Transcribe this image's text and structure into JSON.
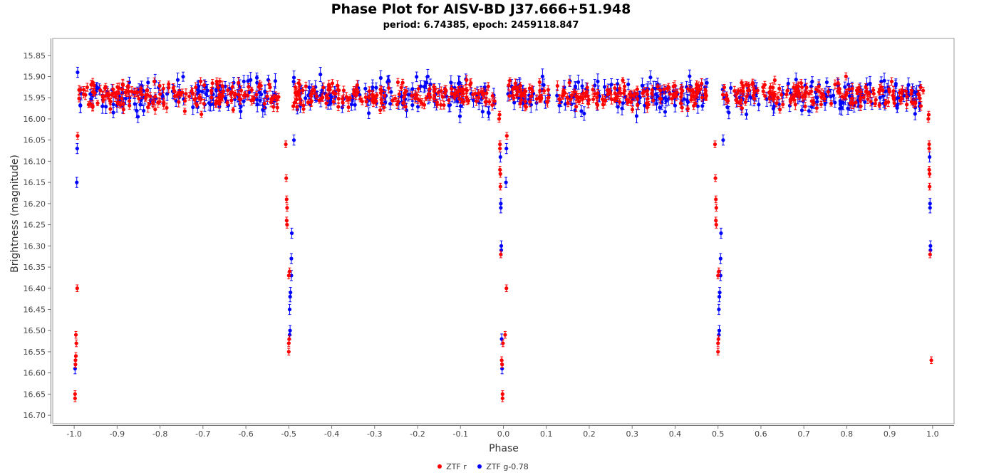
{
  "chart_data": {
    "type": "scatter",
    "title": "Phase Plot for AISV-BD J37.666+51.948",
    "subtitle": "period: 6.74385, epoch: 2459118.847",
    "xlabel": "Phase",
    "ylabel": "Brightness (magnitude)",
    "xlim": [
      -1.05,
      1.05
    ],
    "ylim": [
      15.81,
      16.72
    ],
    "y_inverted": true,
    "x_ticks": [
      "-1.0",
      "-0.9",
      "-0.8",
      "-0.7",
      "-0.6",
      "-0.5",
      "-0.4",
      "-0.3",
      "-0.2",
      "-0.1",
      "0.0",
      "0.1",
      "0.2",
      "0.3",
      "0.4",
      "0.5",
      "0.6",
      "0.7",
      "0.8",
      "0.9",
      "1.0"
    ],
    "y_ticks": [
      "15.85",
      "15.90",
      "15.95",
      "16.00",
      "16.05",
      "16.10",
      "16.15",
      "16.20",
      "16.25",
      "16.30",
      "16.35",
      "16.40",
      "16.45",
      "16.50",
      "16.55",
      "16.60",
      "16.65",
      "16.70"
    ],
    "grid": false,
    "legend_position": "bottom",
    "series": [
      {
        "name": "ZTF r",
        "color": "#ff0000",
        "baseline": {
          "x_ranges": [
            [
              -0.99,
              -0.52
            ],
            [
              -0.49,
              -0.02
            ],
            [
              0.01,
              0.48
            ],
            [
              0.51,
              0.98
            ]
          ],
          "mean": 15.945,
          "spread": 0.03,
          "count_per_range": 170
        },
        "eclipse_points": [
          [
            -0.992,
            16.04
          ],
          [
            -0.993,
            16.4
          ],
          [
            -0.996,
            16.51
          ],
          [
            -0.995,
            16.53
          ],
          [
            -0.996,
            16.56
          ],
          [
            -0.997,
            16.57
          ],
          [
            -0.997,
            16.58
          ],
          [
            -0.998,
            16.65
          ],
          [
            -0.998,
            16.66
          ],
          [
            -0.507,
            16.06
          ],
          [
            -0.506,
            16.14
          ],
          [
            -0.505,
            16.19
          ],
          [
            -0.504,
            16.21
          ],
          [
            -0.505,
            16.24
          ],
          [
            -0.504,
            16.25
          ],
          [
            -0.5,
            16.37
          ],
          [
            -0.498,
            16.36
          ],
          [
            -0.499,
            16.52
          ],
          [
            -0.5,
            16.53
          ],
          [
            -0.5,
            16.55
          ],
          [
            -0.01,
            16.0
          ],
          [
            -0.009,
            15.99
          ],
          [
            -0.008,
            16.06
          ],
          [
            -0.008,
            16.07
          ],
          [
            -0.008,
            16.12
          ],
          [
            -0.007,
            16.13
          ],
          [
            -0.007,
            16.16
          ],
          [
            -0.006,
            16.32
          ],
          [
            -0.004,
            16.57
          ],
          [
            -0.003,
            16.58
          ],
          [
            -0.002,
            16.65
          ],
          [
            -0.002,
            16.66
          ],
          [
            -0.001,
            16.53
          ],
          [
            0.008,
            16.04
          ],
          [
            0.007,
            16.4
          ],
          [
            0.004,
            16.51
          ],
          [
            0.493,
            16.06
          ],
          [
            0.494,
            16.14
          ],
          [
            0.495,
            16.19
          ],
          [
            0.496,
            16.21
          ],
          [
            0.495,
            16.24
          ],
          [
            0.496,
            16.25
          ],
          [
            0.5,
            16.37
          ],
          [
            0.502,
            16.36
          ],
          [
            0.501,
            16.52
          ],
          [
            0.5,
            16.53
          ],
          [
            0.5,
            16.55
          ],
          [
            0.99,
            16.0
          ],
          [
            0.991,
            15.99
          ],
          [
            0.992,
            16.06
          ],
          [
            0.992,
            16.07
          ],
          [
            0.992,
            16.12
          ],
          [
            0.993,
            16.13
          ],
          [
            0.993,
            16.16
          ],
          [
            0.994,
            16.32
          ],
          [
            0.997,
            16.57
          ]
        ]
      },
      {
        "name": "ZTF g-0.78",
        "color": "#0000ff",
        "baseline": {
          "x_ranges": [
            [
              -0.99,
              -0.52
            ],
            [
              -0.49,
              -0.02
            ],
            [
              0.01,
              0.48
            ],
            [
              0.51,
              0.98
            ]
          ],
          "mean": 15.945,
          "spread": 0.04,
          "count_per_range": 130
        },
        "eclipse_points": [
          [
            -0.993,
            16.07
          ],
          [
            -0.994,
            16.15
          ],
          [
            -0.998,
            16.59
          ],
          [
            -0.992,
            15.89
          ],
          [
            -0.488,
            16.05
          ],
          [
            -0.493,
            16.27
          ],
          [
            -0.494,
            16.33
          ],
          [
            -0.494,
            16.37
          ],
          [
            -0.496,
            16.41
          ],
          [
            -0.497,
            16.42
          ],
          [
            -0.498,
            16.45
          ],
          [
            -0.497,
            16.5
          ],
          [
            -0.498,
            16.51
          ],
          [
            -0.007,
            16.09
          ],
          [
            -0.006,
            16.2
          ],
          [
            -0.006,
            16.21
          ],
          [
            -0.005,
            16.3
          ],
          [
            -0.005,
            16.31
          ],
          [
            -0.004,
            16.52
          ],
          [
            -0.003,
            16.59
          ],
          [
            0.007,
            16.07
          ],
          [
            0.006,
            16.15
          ],
          [
            0.512,
            16.05
          ],
          [
            0.507,
            16.27
          ],
          [
            0.506,
            16.33
          ],
          [
            0.506,
            16.37
          ],
          [
            0.504,
            16.41
          ],
          [
            0.503,
            16.42
          ],
          [
            0.502,
            16.45
          ],
          [
            0.503,
            16.5
          ],
          [
            0.502,
            16.51
          ],
          [
            0.993,
            16.09
          ],
          [
            0.994,
            16.2
          ],
          [
            0.994,
            16.21
          ],
          [
            0.995,
            16.3
          ],
          [
            0.995,
            16.31
          ]
        ]
      }
    ]
  }
}
